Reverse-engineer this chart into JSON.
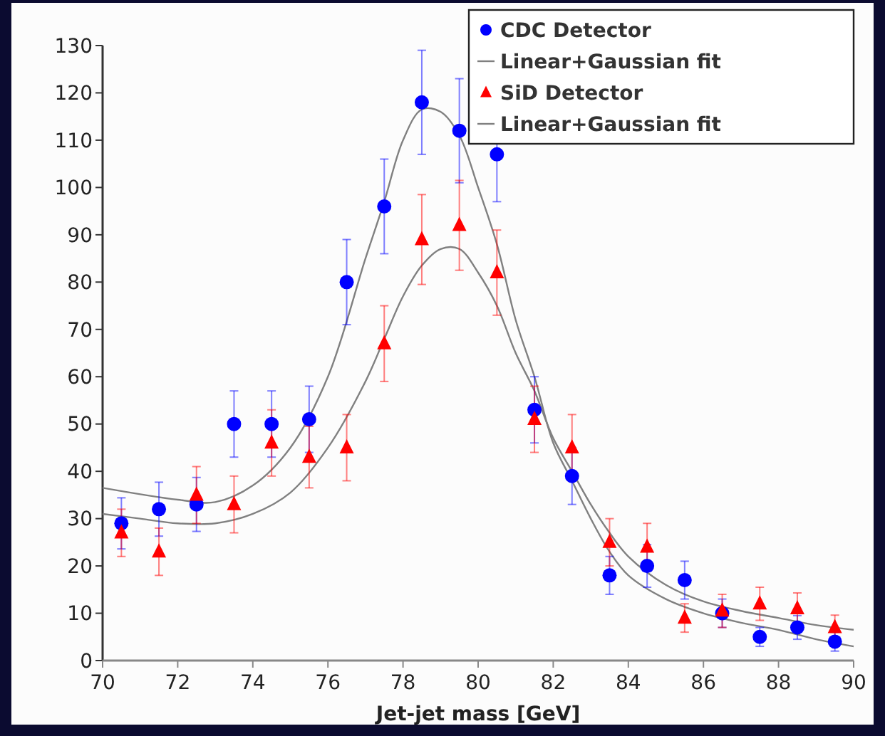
{
  "chart_data": {
    "type": "scatter",
    "xlabel": "Jet-jet mass [GeV]",
    "xlim": [
      70,
      90
    ],
    "ylim": [
      0,
      130
    ],
    "xticks": [
      70,
      72,
      74,
      76,
      78,
      80,
      82,
      84,
      86,
      88,
      90
    ],
    "yticks": [
      0,
      10,
      20,
      30,
      40,
      50,
      60,
      70,
      80,
      90,
      100,
      110,
      120,
      130
    ],
    "grid": false,
    "legend": "top right",
    "series": [
      {
        "name": "CDC Detector",
        "marker": "circle",
        "color": "#0000ff",
        "x": [
          70.5,
          71.5,
          72.5,
          73.5,
          74.5,
          75.5,
          76.5,
          77.5,
          78.5,
          79.5,
          80.5,
          81.5,
          82.5,
          83.5,
          84.5,
          85.5,
          86.5,
          87.5,
          88.5,
          89.5
        ],
        "values": [
          29,
          32,
          33,
          50,
          50,
          51,
          80,
          96,
          118,
          112,
          107,
          53,
          39,
          18,
          20,
          17,
          10,
          5,
          7,
          4
        ],
        "errors": [
          5.4,
          5.7,
          5.7,
          7,
          7,
          7,
          9,
          10,
          11,
          11,
          10,
          7,
          6,
          4,
          4.5,
          4,
          3,
          2,
          2.5,
          2
        ]
      },
      {
        "name": "Linear+Gaussian fit",
        "type": "line",
        "marker": "none",
        "line_style": "solid",
        "color": "#808080",
        "x": [
          70,
          72,
          73,
          74,
          75,
          76,
          77,
          77.5,
          78,
          78.5,
          79,
          79.5,
          80,
          80.5,
          81,
          81.5,
          82,
          82.5,
          83,
          83.5,
          84,
          85,
          86,
          87,
          88,
          89,
          90
        ],
        "values": [
          36.5,
          34,
          33.5,
          37,
          45,
          60,
          85,
          97,
          110,
          116.5,
          116,
          111,
          100,
          88,
          72,
          60,
          46,
          38,
          30,
          23,
          18,
          13,
          10,
          8,
          6.5,
          4.5,
          3
        ]
      },
      {
        "name": "SiD Detector",
        "marker": "triangle",
        "color": "#ff0000",
        "x": [
          70.5,
          71.5,
          72.5,
          73.5,
          74.5,
          75.5,
          76.5,
          77.5,
          78.5,
          79.5,
          80.5,
          81.5,
          82.5,
          83.5,
          84.5,
          85.5,
          86.5,
          87.5,
          88.5,
          89.5
        ],
        "values": [
          27,
          23,
          35,
          33,
          46,
          43,
          45,
          67,
          89,
          92,
          82,
          51,
          45,
          25,
          24,
          9,
          10.5,
          12,
          11,
          7
        ],
        "errors": [
          5,
          5,
          6,
          6,
          7,
          6.5,
          7,
          8,
          9.5,
          9.5,
          9,
          7,
          7,
          5,
          5,
          3,
          3.5,
          3.5,
          3.3,
          2.6
        ]
      },
      {
        "name": "Linear+Gaussian fit",
        "type": "line",
        "marker": "none",
        "line_style": "solid",
        "color": "#808080",
        "x": [
          70,
          71,
          72,
          73,
          74,
          75,
          76,
          77,
          77.5,
          78,
          78.5,
          79,
          79.5,
          80,
          80.5,
          81,
          81.5,
          82,
          82.5,
          83,
          83.5,
          84,
          85,
          86,
          87,
          88,
          89,
          90
        ],
        "values": [
          31,
          30,
          29,
          29,
          31,
          35.5,
          45,
          59,
          68,
          77,
          83.5,
          87,
          87,
          82,
          75,
          65,
          57,
          47,
          40,
          33,
          27,
          22,
          16,
          12.5,
          10.5,
          9,
          7.5,
          6.5
        ]
      }
    ]
  }
}
